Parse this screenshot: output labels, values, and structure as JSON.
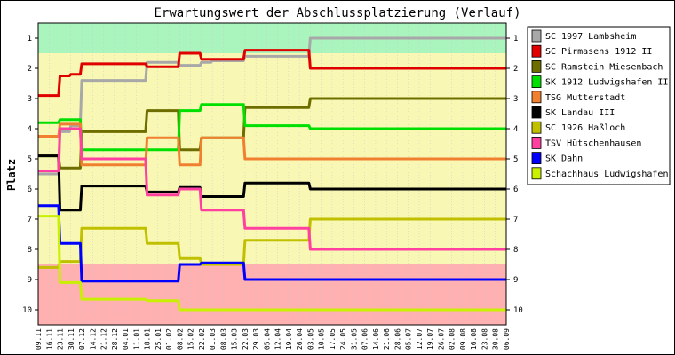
{
  "chart_data": {
    "type": "line",
    "title": "Erwartungswert der Abschlussplatzierung (Verlauf)",
    "ylabel": "Platz",
    "xlabel": "",
    "ylim": [
      1,
      10
    ],
    "y_inverted": true,
    "yticks": [
      1,
      2,
      3,
      4,
      5,
      6,
      7,
      8,
      9,
      10
    ],
    "x": [
      "09.11",
      "16.11",
      "23.11",
      "30.11",
      "07.12",
      "14.12",
      "21.12",
      "28.12",
      "04.01",
      "11.01",
      "18.01",
      "25.01",
      "01.02",
      "08.02",
      "15.02",
      "22.02",
      "01.03",
      "08.03",
      "15.03",
      "22.03",
      "29.03",
      "05.04",
      "12.04",
      "19.04",
      "26.04",
      "03.05",
      "10.05",
      "17.05",
      "24.05",
      "31.05",
      "07.06",
      "14.06",
      "21.06",
      "28.06",
      "05.07",
      "12.07",
      "19.07",
      "26.07",
      "02.08",
      "09.08",
      "16.08",
      "23.08",
      "30.08",
      "06.09"
    ],
    "legend_position": "right",
    "zones": [
      {
        "name": "promotion",
        "from": 0.5,
        "to": 1.5,
        "color": "#aaf5be"
      },
      {
        "name": "middle",
        "from": 1.5,
        "to": 8.5,
        "color": "#f8f8b4"
      },
      {
        "name": "relegation",
        "from": 8.5,
        "to": 10.5,
        "color": "#ffb0b0"
      }
    ],
    "series": [
      {
        "name": "SC 1997 Lambsheim",
        "color": "#a8a8a8",
        "values": [
          5.5,
          5.5,
          4.1,
          3.9,
          2.4,
          2.4,
          2.4,
          2.4,
          2.4,
          2.4,
          1.8,
          1.8,
          1.8,
          1.9,
          1.9,
          1.8,
          1.75,
          1.75,
          1.75,
          1.6,
          1.6,
          1.6,
          1.6,
          1.6,
          1.6,
          1.0,
          1.0,
          1.0,
          1.0,
          1.0,
          1.0,
          1.0,
          1.0,
          1.0,
          1.0,
          1.0,
          1.0,
          1.0,
          1.0,
          1.0,
          1.0,
          1.0,
          1.0,
          1.0
        ]
      },
      {
        "name": "SC Pirmasens 1912 II",
        "color": "#e00000",
        "values": [
          2.9,
          2.9,
          2.25,
          2.2,
          1.85,
          1.85,
          1.85,
          1.85,
          1.85,
          1.85,
          1.95,
          1.95,
          1.95,
          1.5,
          1.5,
          1.7,
          1.7,
          1.7,
          1.7,
          1.4,
          1.4,
          1.4,
          1.4,
          1.4,
          1.4,
          2.0,
          2.0,
          2.0,
          2.0,
          2.0,
          2.0,
          2.0,
          2.0,
          2.0,
          2.0,
          2.0,
          2.0,
          2.0,
          2.0,
          2.0,
          2.0,
          2.0,
          2.0,
          2.0
        ]
      },
      {
        "name": "SC Ramstein-Miesenbach",
        "color": "#6e6e00",
        "values": [
          4.9,
          4.9,
          5.3,
          5.3,
          4.1,
          4.1,
          4.1,
          4.1,
          4.1,
          4.1,
          3.4,
          3.4,
          3.4,
          4.7,
          4.7,
          4.3,
          4.3,
          4.3,
          4.3,
          3.3,
          3.3,
          3.3,
          3.3,
          3.3,
          3.3,
          3.0,
          3.0,
          3.0,
          3.0,
          3.0,
          3.0,
          3.0,
          3.0,
          3.0,
          3.0,
          3.0,
          3.0,
          3.0,
          3.0,
          3.0,
          3.0,
          3.0,
          3.0,
          3.0
        ]
      },
      {
        "name": "SK 1912 Ludwigshafen II",
        "color": "#00e000",
        "values": [
          3.8,
          3.8,
          3.7,
          3.7,
          4.7,
          4.7,
          4.7,
          4.7,
          4.7,
          4.7,
          4.7,
          4.7,
          4.7,
          3.4,
          3.4,
          3.2,
          3.2,
          3.2,
          3.2,
          3.9,
          3.9,
          3.9,
          3.9,
          3.9,
          3.9,
          4.0,
          4.0,
          4.0,
          4.0,
          4.0,
          4.0,
          4.0,
          4.0,
          4.0,
          4.0,
          4.0,
          4.0,
          4.0,
          4.0,
          4.0,
          4.0,
          4.0,
          4.0,
          4.0
        ]
      },
      {
        "name": "TSG Mutterstadt",
        "color": "#f08030",
        "values": [
          4.25,
          4.25,
          3.85,
          3.85,
          5.2,
          5.2,
          5.2,
          5.2,
          5.2,
          5.2,
          4.3,
          4.3,
          4.3,
          5.2,
          5.2,
          4.3,
          4.3,
          4.3,
          4.3,
          5.0,
          5.0,
          5.0,
          5.0,
          5.0,
          5.0,
          5.0,
          5.0,
          5.0,
          5.0,
          5.0,
          5.0,
          5.0,
          5.0,
          5.0,
          5.0,
          5.0,
          5.0,
          5.0,
          5.0,
          5.0,
          5.0,
          5.0,
          5.0,
          5.0
        ]
      },
      {
        "name": "SK Landau III",
        "color": "#000000",
        "values": [
          4.9,
          4.9,
          6.7,
          6.7,
          5.9,
          5.9,
          5.9,
          5.9,
          5.9,
          5.9,
          6.1,
          6.1,
          6.1,
          5.95,
          5.95,
          6.25,
          6.25,
          6.25,
          6.25,
          5.8,
          5.8,
          5.8,
          5.8,
          5.8,
          5.8,
          6.0,
          6.0,
          6.0,
          6.0,
          6.0,
          6.0,
          6.0,
          6.0,
          6.0,
          6.0,
          6.0,
          6.0,
          6.0,
          6.0,
          6.0,
          6.0,
          6.0,
          6.0,
          6.0
        ]
      },
      {
        "name": "SC 1926 Haßloch",
        "color": "#c0c000",
        "values": [
          8.6,
          8.6,
          8.4,
          8.4,
          7.3,
          7.3,
          7.3,
          7.3,
          7.3,
          7.3,
          7.8,
          7.8,
          7.8,
          8.3,
          8.3,
          8.5,
          8.5,
          8.5,
          8.5,
          7.7,
          7.7,
          7.7,
          7.7,
          7.7,
          7.7,
          7.0,
          7.0,
          7.0,
          7.0,
          7.0,
          7.0,
          7.0,
          7.0,
          7.0,
          7.0,
          7.0,
          7.0,
          7.0,
          7.0,
          7.0,
          7.0,
          7.0,
          7.0,
          7.0
        ]
      },
      {
        "name": "TSV Hütschenhausen",
        "color": "#ff40a0",
        "values": [
          5.4,
          5.4,
          4.0,
          4.0,
          5.0,
          5.0,
          5.0,
          5.0,
          5.0,
          5.0,
          6.2,
          6.2,
          6.2,
          6.0,
          6.0,
          6.7,
          6.7,
          6.7,
          6.7,
          7.3,
          7.3,
          7.3,
          7.3,
          7.3,
          7.3,
          8.0,
          8.0,
          8.0,
          8.0,
          8.0,
          8.0,
          8.0,
          8.0,
          8.0,
          8.0,
          8.0,
          8.0,
          8.0,
          8.0,
          8.0,
          8.0,
          8.0,
          8.0,
          8.0
        ]
      },
      {
        "name": "SK Dahn",
        "color": "#0000ff",
        "values": [
          6.55,
          6.55,
          7.8,
          7.8,
          9.05,
          9.05,
          9.05,
          9.05,
          9.05,
          9.05,
          9.05,
          9.05,
          9.05,
          8.5,
          8.5,
          8.45,
          8.45,
          8.45,
          8.45,
          9.0,
          9.0,
          9.0,
          9.0,
          9.0,
          9.0,
          9.0,
          9.0,
          9.0,
          9.0,
          9.0,
          9.0,
          9.0,
          9.0,
          9.0,
          9.0,
          9.0,
          9.0,
          9.0,
          9.0,
          9.0,
          9.0,
          9.0,
          9.0,
          9.0
        ]
      },
      {
        "name": "Schachhaus Ludwigshafen",
        "color": "#c8f000",
        "values": [
          6.9,
          6.9,
          9.1,
          9.1,
          9.65,
          9.65,
          9.65,
          9.65,
          9.65,
          9.65,
          9.7,
          9.7,
          9.7,
          10.0,
          10.0,
          10.0,
          10.0,
          10.0,
          10.0,
          10.0,
          10.0,
          10.0,
          10.0,
          10.0,
          10.0,
          10.0,
          10.0,
          10.0,
          10.0,
          10.0,
          10.0,
          10.0,
          10.0,
          10.0,
          10.0,
          10.0,
          10.0,
          10.0,
          10.0,
          10.0,
          10.0,
          10.0,
          10.0,
          10.0
        ]
      }
    ]
  }
}
